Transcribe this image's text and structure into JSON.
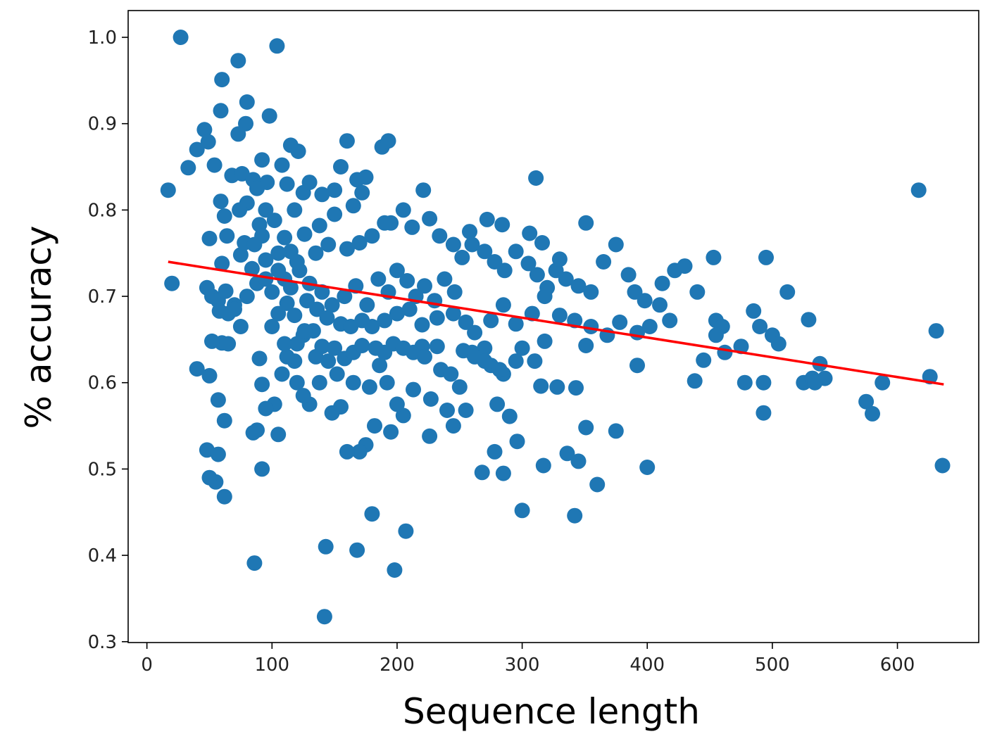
{
  "chart_data": {
    "type": "scatter",
    "title": "",
    "xlabel": "Sequence length",
    "ylabel": "% accuracy",
    "xlim": [
      -15,
      665
    ],
    "ylim": [
      0.299,
      1.031
    ],
    "x_ticks": [
      0,
      100,
      200,
      300,
      400,
      500,
      600
    ],
    "y_ticks": [
      0.3,
      0.4,
      0.5,
      0.6,
      0.7,
      0.8,
      0.9,
      1.0
    ],
    "grid": false,
    "legend": "none",
    "point_color": "#1f77b4",
    "trend_color": "#ff0000",
    "series": [
      {
        "values_xy": [
          [
            27,
            1.0
          ],
          [
            104,
            0.99
          ],
          [
            73,
            0.973
          ],
          [
            60,
            0.951
          ],
          [
            59,
            0.915
          ],
          [
            80,
            0.925
          ],
          [
            98,
            0.909
          ],
          [
            79,
            0.9
          ],
          [
            73,
            0.888
          ],
          [
            46,
            0.893
          ],
          [
            49,
            0.879
          ],
          [
            40,
            0.87
          ],
          [
            33,
            0.849
          ],
          [
            54,
            0.852
          ],
          [
            17,
            0.823
          ],
          [
            59,
            0.81
          ],
          [
            62,
            0.793
          ],
          [
            68,
            0.84
          ],
          [
            76,
            0.842
          ],
          [
            85,
            0.835
          ],
          [
            92,
            0.858
          ],
          [
            96,
            0.832
          ],
          [
            88,
            0.825
          ],
          [
            80,
            0.808
          ],
          [
            95,
            0.8
          ],
          [
            74,
            0.8
          ],
          [
            90,
            0.783
          ],
          [
            108,
            0.852
          ],
          [
            115,
            0.875
          ],
          [
            121,
            0.868
          ],
          [
            112,
            0.83
          ],
          [
            125,
            0.82
          ],
          [
            118,
            0.8
          ],
          [
            102,
            0.788
          ],
          [
            110,
            0.768
          ],
          [
            130,
            0.832
          ],
          [
            140,
            0.818
          ],
          [
            150,
            0.823
          ],
          [
            160,
            0.88
          ],
          [
            155,
            0.85
          ],
          [
            168,
            0.835
          ],
          [
            172,
            0.82
          ],
          [
            165,
            0.805
          ],
          [
            150,
            0.795
          ],
          [
            138,
            0.782
          ],
          [
            126,
            0.772
          ],
          [
            115,
            0.752
          ],
          [
            105,
            0.75
          ],
          [
            95,
            0.742
          ],
          [
            84,
            0.732
          ],
          [
            75,
            0.748
          ],
          [
            64,
            0.77
          ],
          [
            60,
            0.738
          ],
          [
            50,
            0.767
          ],
          [
            20,
            0.715
          ],
          [
            48,
            0.71
          ],
          [
            52,
            0.7
          ],
          [
            57,
            0.695
          ],
          [
            63,
            0.706
          ],
          [
            70,
            0.69
          ],
          [
            80,
            0.7
          ],
          [
            88,
            0.715
          ],
          [
            100,
            0.705
          ],
          [
            110,
            0.72
          ],
          [
            122,
            0.73
          ],
          [
            130,
            0.715
          ],
          [
            140,
            0.705
          ],
          [
            148,
            0.69
          ],
          [
            158,
            0.7
          ],
          [
            167,
            0.712
          ],
          [
            176,
            0.69
          ],
          [
            185,
            0.72
          ],
          [
            193,
            0.705
          ],
          [
            200,
            0.73
          ],
          [
            208,
            0.718
          ],
          [
            215,
            0.7
          ],
          [
            222,
            0.712
          ],
          [
            230,
            0.695
          ],
          [
            238,
            0.72
          ],
          [
            246,
            0.705
          ],
          [
            252,
            0.745
          ],
          [
            260,
            0.76
          ],
          [
            270,
            0.752
          ],
          [
            278,
            0.74
          ],
          [
            286,
            0.73
          ],
          [
            295,
            0.752
          ],
          [
            305,
            0.738
          ],
          [
            312,
            0.725
          ],
          [
            320,
            0.71
          ],
          [
            327,
            0.73
          ],
          [
            335,
            0.72
          ],
          [
            345,
            0.712
          ],
          [
            355,
            0.705
          ],
          [
            365,
            0.74
          ],
          [
            375,
            0.76
          ],
          [
            385,
            0.725
          ],
          [
            390,
            0.705
          ],
          [
            398,
            0.695
          ],
          [
            410,
            0.69
          ],
          [
            412,
            0.715
          ],
          [
            422,
            0.73
          ],
          [
            430,
            0.735
          ],
          [
            440,
            0.705
          ],
          [
            453,
            0.745
          ],
          [
            495,
            0.745
          ],
          [
            311,
            0.837
          ],
          [
            221,
            0.823
          ],
          [
            188,
            0.873
          ],
          [
            193,
            0.88
          ],
          [
            175,
            0.838
          ],
          [
            195,
            0.785
          ],
          [
            205,
            0.8
          ],
          [
            212,
            0.78
          ],
          [
            226,
            0.79
          ],
          [
            234,
            0.77
          ],
          [
            245,
            0.76
          ],
          [
            258,
            0.775
          ],
          [
            272,
            0.789
          ],
          [
            284,
            0.783
          ],
          [
            306,
            0.773
          ],
          [
            316,
            0.762
          ],
          [
            330,
            0.743
          ],
          [
            351,
            0.785
          ],
          [
            190,
            0.785
          ],
          [
            180,
            0.77
          ],
          [
            170,
            0.762
          ],
          [
            160,
            0.755
          ],
          [
            145,
            0.76
          ],
          [
            135,
            0.75
          ],
          [
            120,
            0.74
          ],
          [
            92,
            0.77
          ],
          [
            78,
            0.762
          ],
          [
            86,
            0.76
          ],
          [
            95,
            0.72
          ],
          [
            105,
            0.73
          ],
          [
            115,
            0.71
          ],
          [
            128,
            0.695
          ],
          [
            136,
            0.685
          ],
          [
            144,
            0.675
          ],
          [
            155,
            0.668
          ],
          [
            163,
            0.665
          ],
          [
            172,
            0.672
          ],
          [
            180,
            0.665
          ],
          [
            190,
            0.672
          ],
          [
            200,
            0.68
          ],
          [
            210,
            0.685
          ],
          [
            220,
            0.667
          ],
          [
            232,
            0.675
          ],
          [
            245,
            0.68
          ],
          [
            255,
            0.67
          ],
          [
            262,
            0.658
          ],
          [
            275,
            0.672
          ],
          [
            285,
            0.69
          ],
          [
            295,
            0.668
          ],
          [
            308,
            0.68
          ],
          [
            318,
            0.7
          ],
          [
            330,
            0.678
          ],
          [
            342,
            0.672
          ],
          [
            355,
            0.665
          ],
          [
            368,
            0.655
          ],
          [
            378,
            0.67
          ],
          [
            392,
            0.658
          ],
          [
            402,
            0.665
          ],
          [
            418,
            0.672
          ],
          [
            455,
            0.672
          ],
          [
            460,
            0.665
          ],
          [
            485,
            0.683
          ],
          [
            490,
            0.665
          ],
          [
            500,
            0.655
          ],
          [
            505,
            0.645
          ],
          [
            512,
            0.705
          ],
          [
            529,
            0.673
          ],
          [
            455,
            0.655
          ],
          [
            462,
            0.635
          ],
          [
            475,
            0.642
          ],
          [
            478,
            0.6
          ],
          [
            493,
            0.6
          ],
          [
            525,
            0.6
          ],
          [
            532,
            0.605
          ],
          [
            538,
            0.622
          ],
          [
            542,
            0.605
          ],
          [
            534,
            0.6
          ],
          [
            575,
            0.578
          ],
          [
            580,
            0.564
          ],
          [
            588,
            0.6
          ],
          [
            617,
            0.823
          ],
          [
            626,
            0.607
          ],
          [
            631,
            0.66
          ],
          [
            636,
            0.504
          ],
          [
            493,
            0.565
          ],
          [
            445,
            0.626
          ],
          [
            438,
            0.602
          ],
          [
            400,
            0.502
          ],
          [
            392,
            0.62
          ],
          [
            375,
            0.544
          ],
          [
            360,
            0.482
          ],
          [
            351,
            0.548
          ],
          [
            351,
            0.643
          ],
          [
            343,
            0.594
          ],
          [
            345,
            0.509
          ],
          [
            336,
            0.518
          ],
          [
            342,
            0.446
          ],
          [
            328,
            0.595
          ],
          [
            317,
            0.504
          ],
          [
            315,
            0.596
          ],
          [
            318,
            0.648
          ],
          [
            310,
            0.625
          ],
          [
            300,
            0.452
          ],
          [
            296,
            0.532
          ],
          [
            290,
            0.561
          ],
          [
            285,
            0.495
          ],
          [
            285,
            0.61
          ],
          [
            280,
            0.575
          ],
          [
            278,
            0.52
          ],
          [
            268,
            0.496
          ],
          [
            275,
            0.62
          ],
          [
            270,
            0.64
          ],
          [
            260,
            0.635
          ],
          [
            255,
            0.568
          ],
          [
            250,
            0.595
          ],
          [
            245,
            0.55
          ],
          [
            240,
            0.568
          ],
          [
            232,
            0.642
          ],
          [
            227,
            0.581
          ],
          [
            226,
            0.538
          ],
          [
            220,
            0.642
          ],
          [
            213,
            0.592
          ],
          [
            205,
            0.562
          ],
          [
            200,
            0.575
          ],
          [
            198,
            0.383
          ],
          [
            207,
            0.428
          ],
          [
            195,
            0.543
          ],
          [
            192,
            0.6
          ],
          [
            186,
            0.62
          ],
          [
            182,
            0.55
          ],
          [
            180,
            0.448
          ],
          [
            178,
            0.595
          ],
          [
            175,
            0.528
          ],
          [
            170,
            0.52
          ],
          [
            168,
            0.406
          ],
          [
            165,
            0.6
          ],
          [
            160,
            0.52
          ],
          [
            155,
            0.572
          ],
          [
            152,
            0.61
          ],
          [
            148,
            0.565
          ],
          [
            145,
            0.625
          ],
          [
            143,
            0.41
          ],
          [
            142,
            0.329
          ],
          [
            138,
            0.6
          ],
          [
            135,
            0.63
          ],
          [
            130,
            0.575
          ],
          [
            125,
            0.585
          ],
          [
            120,
            0.6
          ],
          [
            118,
            0.625
          ],
          [
            112,
            0.63
          ],
          [
            110,
            0.645
          ],
          [
            108,
            0.61
          ],
          [
            105,
            0.54
          ],
          [
            102,
            0.575
          ],
          [
            95,
            0.57
          ],
          [
            92,
            0.598
          ],
          [
            90,
            0.628
          ],
          [
            92,
            0.5
          ],
          [
            88,
            0.545
          ],
          [
            85,
            0.542
          ],
          [
            86,
            0.391
          ],
          [
            65,
            0.645
          ],
          [
            60,
            0.646
          ],
          [
            57,
            0.58
          ],
          [
            62,
            0.556
          ],
          [
            52,
            0.648
          ],
          [
            50,
            0.608
          ],
          [
            48,
            0.522
          ],
          [
            57,
            0.517
          ],
          [
            55,
            0.485
          ],
          [
            62,
            0.468
          ],
          [
            50,
            0.49
          ],
          [
            40,
            0.616
          ],
          [
            120,
            0.645
          ],
          [
            125,
            0.655
          ],
          [
            133,
            0.66
          ],
          [
            140,
            0.642
          ],
          [
            150,
            0.64
          ],
          [
            158,
            0.628
          ],
          [
            165,
            0.635
          ],
          [
            172,
            0.643
          ],
          [
            183,
            0.64
          ],
          [
            190,
            0.635
          ],
          [
            197,
            0.645
          ],
          [
            205,
            0.64
          ],
          [
            213,
            0.635
          ],
          [
            222,
            0.63
          ],
          [
            235,
            0.615
          ],
          [
            243,
            0.61
          ],
          [
            253,
            0.637
          ],
          [
            262,
            0.63
          ],
          [
            270,
            0.625
          ],
          [
            282,
            0.615
          ],
          [
            295,
            0.625
          ],
          [
            300,
            0.64
          ],
          [
            100,
            0.665
          ],
          [
            105,
            0.68
          ],
          [
            112,
            0.692
          ],
          [
            118,
            0.678
          ],
          [
            126,
            0.66
          ],
          [
            75,
            0.665
          ],
          [
            70,
            0.685
          ],
          [
            65,
            0.68
          ],
          [
            58,
            0.683
          ]
        ]
      }
    ],
    "trend_line": {
      "x": [
        17,
        637
      ],
      "y": [
        0.74,
        0.598
      ]
    }
  }
}
